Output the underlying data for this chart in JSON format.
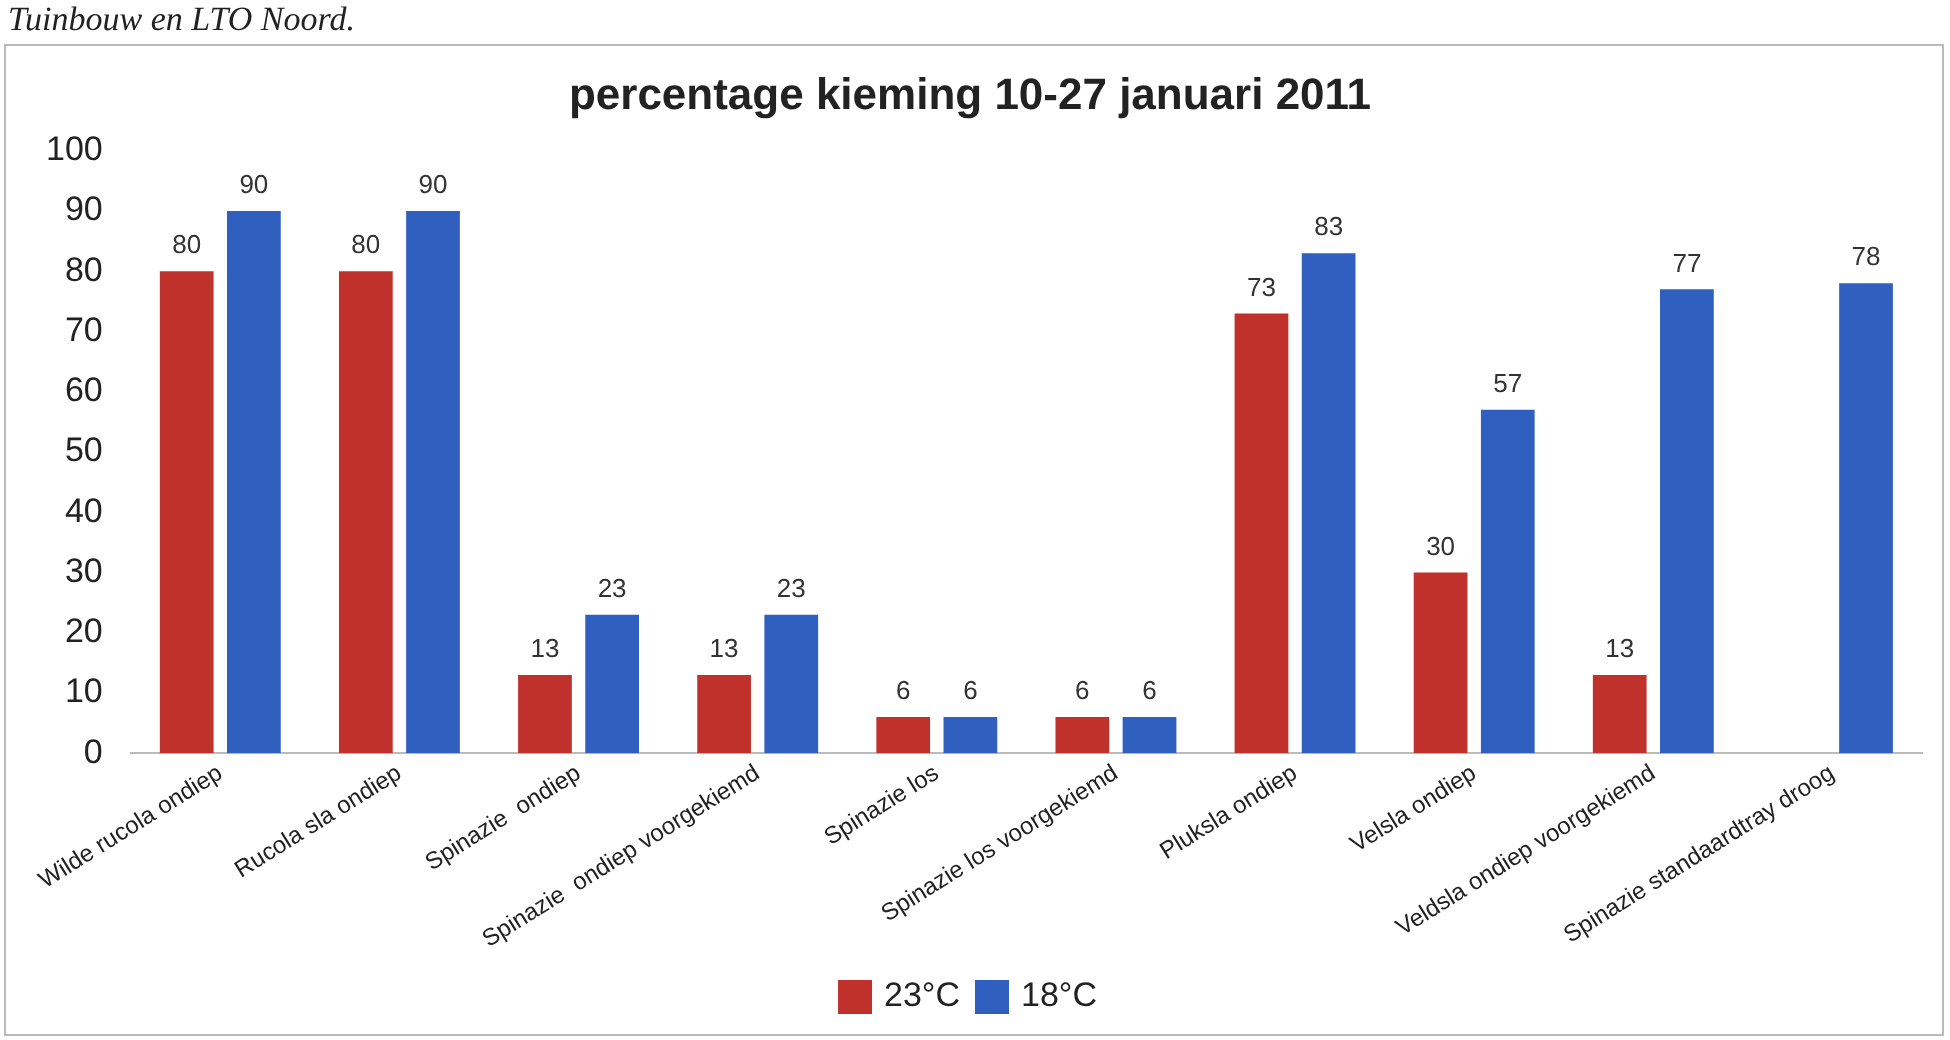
{
  "chart_data": {
    "type": "bar",
    "title": "percentage kieming 10-27 januari 2011",
    "annotations": [
      "Tuinbouw en LTO Noord."
    ],
    "categories": [
      "Wilde rucola ondiep",
      "Rucola sla ondiep",
      "Spinazie  ondiep",
      "Spinazie  ondiep voorgekiemd",
      "Spinazie los",
      "Spinazie los voorgekiemd",
      "Pluksla ondiep",
      "Velsla ondiep",
      "Veldsla ondiep voorgekiemd",
      "Spinazie standaardtray droog"
    ],
    "series": [
      {
        "name": "23°C",
        "color": "#c0312b",
        "values": [
          80,
          80,
          13,
          13,
          6,
          6,
          73,
          30,
          13,
          null
        ]
      },
      {
        "name": "18°C",
        "color": "#2f5fbf",
        "values": [
          90,
          90,
          23,
          23,
          6,
          6,
          83,
          57,
          77,
          78
        ]
      }
    ],
    "ylim": [
      0,
      100
    ],
    "yticks": [
      0,
      10,
      20,
      30,
      40,
      50,
      60,
      70,
      80,
      90,
      100
    ],
    "grid": false,
    "legend": "bottom",
    "data_labels": true
  }
}
